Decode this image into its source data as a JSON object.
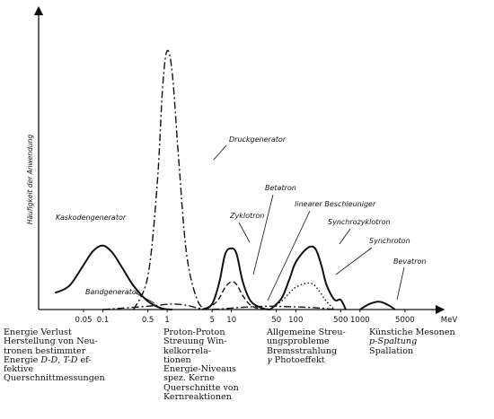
{
  "chart_data": {
    "type": "line",
    "title": "",
    "ylabel": "Häufigkeit der Anwendung",
    "xlabel": "",
    "x_unit": "MeV",
    "x_scale": "log",
    "xlim": [
      0.01,
      15000
    ],
    "ylim": [
      0,
      10
    ],
    "grid": false,
    "x_ticks": [
      {
        "value": 0.05,
        "label": "0.05"
      },
      {
        "value": 0.1,
        "label": "0.1"
      },
      {
        "value": 0.5,
        "label": "0.5"
      },
      {
        "value": 1,
        "label": "1"
      },
      {
        "value": 5,
        "label": "5"
      },
      {
        "value": 10,
        "label": "10"
      },
      {
        "value": 50,
        "label": "50"
      },
      {
        "value": 100,
        "label": "100"
      },
      {
        "value": 500,
        "label": "500"
      },
      {
        "value": 1000,
        "label": "1000"
      },
      {
        "value": 5000,
        "label": "5000"
      }
    ],
    "series": [
      {
        "name": "Kaskodengenerator",
        "style": "solid",
        "x": [
          0.018,
          0.03,
          0.05,
          0.07,
          0.1,
          0.14,
          0.2,
          0.3,
          0.5,
          0.8,
          1.2
        ],
        "y": [
          0.6,
          0.85,
          1.6,
          2.1,
          2.3,
          2.05,
          1.5,
          0.85,
          0.3,
          0.05,
          0.0
        ]
      },
      {
        "name": "Bandgenerator",
        "style": "dashdot",
        "x": [
          0.1,
          0.2,
          0.4,
          0.7,
          1.2,
          2,
          3,
          4
        ],
        "y": [
          0.0,
          0.05,
          0.1,
          0.15,
          0.2,
          0.15,
          0.05,
          0.0
        ]
      },
      {
        "name": "Druckgenerator",
        "style": "dashdot",
        "x": [
          0.3,
          0.5,
          0.7,
          0.85,
          1,
          1.2,
          1.5,
          2,
          3,
          4.5
        ],
        "y": [
          0.0,
          1.2,
          4.5,
          8.0,
          9.3,
          8.5,
          5.5,
          2.0,
          0.3,
          0.0
        ]
      },
      {
        "name": "Zyklotron",
        "style": "solid",
        "x": [
          3.5,
          5,
          6.5,
          8,
          10,
          12,
          15,
          20,
          30,
          40
        ],
        "y": [
          0.0,
          0.2,
          1.0,
          2.0,
          2.2,
          2.0,
          1.0,
          0.3,
          0.05,
          0.0
        ]
      },
      {
        "name": "Betatron",
        "style": "dashed",
        "x": [
          4,
          6,
          8,
          10,
          12,
          15,
          20,
          30
        ],
        "y": [
          0.0,
          0.3,
          0.8,
          1.0,
          0.9,
          0.5,
          0.15,
          0.0
        ]
      },
      {
        "name": "linearer Beschleuniger",
        "style": "dashdot",
        "x": [
          5,
          10,
          20,
          40,
          80,
          150,
          250,
          400
        ],
        "y": [
          0.0,
          0.05,
          0.1,
          0.12,
          0.1,
          0.08,
          0.05,
          0.0
        ]
      },
      {
        "name": "Synchrozyklotron",
        "style": "solid",
        "x": [
          40,
          60,
          80,
          100,
          150,
          200,
          250,
          300,
          400,
          500,
          600
        ],
        "y": [
          0.0,
          0.4,
          1.1,
          1.7,
          2.2,
          2.2,
          1.6,
          0.9,
          0.35,
          0.35,
          0.0
        ]
      },
      {
        "name": "Synchroton",
        "style": "dotted",
        "x": [
          40,
          60,
          80,
          100,
          150,
          200,
          300,
          400
        ],
        "y": [
          0.0,
          0.3,
          0.6,
          0.8,
          0.95,
          0.85,
          0.3,
          0.0
        ]
      },
      {
        "name": "Bevatron",
        "style": "solid",
        "x": [
          1000,
          1400,
          2000,
          2800,
          3500
        ],
        "y": [
          0.0,
          0.2,
          0.28,
          0.15,
          0.0
        ]
      }
    ],
    "annotations": [
      {
        "text": "Kaskodengenerator",
        "series": "Kaskodengenerator"
      },
      {
        "text": "Bandgenerator",
        "series": "Bandgenerator"
      },
      {
        "text": "Druckgenerator",
        "series": "Druckgenerator"
      },
      {
        "text": "Zyklotron",
        "series": "Zyklotron"
      },
      {
        "text": "Betatron",
        "series": "Betatron"
      },
      {
        "text": "linearer Beschleuniger",
        "series": "linearer Beschleuniger"
      },
      {
        "text": "Synchrozyklotron",
        "series": "Synchrozyklotron"
      },
      {
        "text": "Synchroton",
        "series": "Synchroton"
      },
      {
        "text": "Bevatron",
        "series": "Bevatron"
      }
    ]
  },
  "notes": [
    {
      "lines": [
        "Energie Verlust",
        "Herstellung von Neu-",
        "tronen bestimmter",
        "Energie D-D, T-D ef-",
        "fektive",
        "Querschnittmessungen"
      ]
    },
    {
      "lines": [
        "Proton-Proton",
        "Streuung Win-",
        "kelkorrela-",
        "tionen",
        "Energie-Niveaus",
        "spez. Kerne",
        "Querschnitte von",
        "Kernreaktionen"
      ]
    },
    {
      "lines": [
        "Allgemeine Streu-",
        "ungsprobleme",
        "Bremsstrahlung",
        "γ Photoeffekt"
      ]
    },
    {
      "lines": [
        "Künstiche Mesonen",
        "p-Spaltung",
        "Spallation"
      ]
    }
  ]
}
